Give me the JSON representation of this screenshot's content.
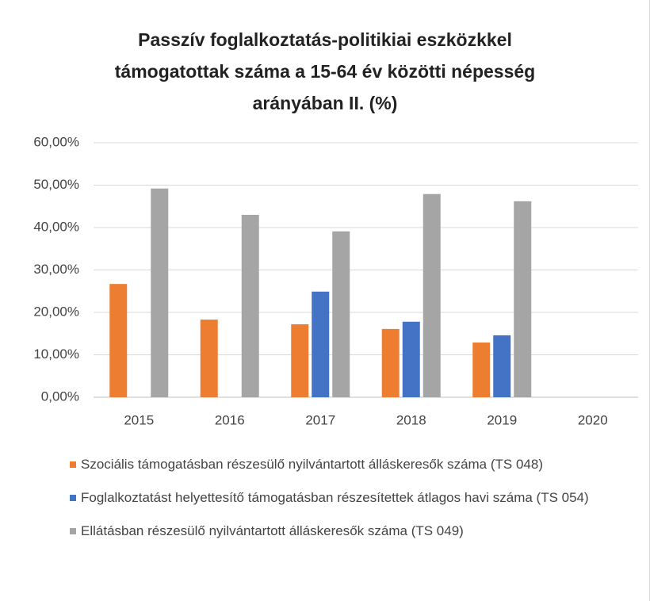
{
  "chart_data": {
    "type": "bar",
    "title": "Passzív foglalkoztatás-politikiai eszközkkel támogatottak száma a 15-64 év közötti népesség arányában II. (%)",
    "categories": [
      "2015",
      "2016",
      "2017",
      "2018",
      "2019",
      "2020"
    ],
    "series": [
      {
        "name": "Szociális támogatásban részesülő nyilvántartott álláskeresők száma (TS 048)",
        "color": "#ed7d31",
        "values": [
          26.7,
          18.3,
          17.2,
          16.1,
          12.9,
          null
        ]
      },
      {
        "name": "Foglalkoztatást helyettesítő támogatásban részesítettek átlagos havi száma (TS 054)",
        "color": "#4472c4",
        "values": [
          null,
          null,
          24.9,
          17.8,
          14.6,
          null
        ]
      },
      {
        "name": "Ellátásban részesülő nyilvántartott álláskeresők száma (TS 049)",
        "color": "#a5a5a5",
        "values": [
          49.2,
          43.0,
          39.1,
          47.9,
          46.2,
          null
        ]
      }
    ],
    "ylim": [
      0,
      60
    ],
    "yticks": [
      {
        "value": 0,
        "label": "0,00%"
      },
      {
        "value": 10,
        "label": "10,00%"
      },
      {
        "value": 20,
        "label": "20,00%"
      },
      {
        "value": 30,
        "label": "30,00%"
      },
      {
        "value": 40,
        "label": "40,00%"
      },
      {
        "value": 50,
        "label": "50,00%"
      },
      {
        "value": 60,
        "label": "60,00%"
      }
    ],
    "grid": true
  }
}
